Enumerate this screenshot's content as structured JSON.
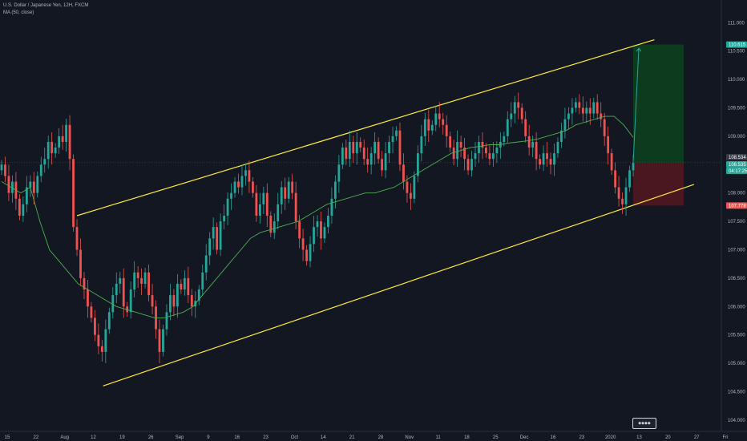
{
  "legend": {
    "title": "U.S. Dollar / Japanese Yen, 12H, FXCM",
    "ma": "MA (50, close)"
  },
  "colors": {
    "background": "#131722",
    "up": "#26a69a",
    "down": "#ef5350",
    "ma": "#4caf50",
    "channel": "#ffeb3b",
    "target_zone": "#0d3b1e",
    "stop_zone": "#4a1620",
    "axis_text": "#b2b5be"
  },
  "chart_data": {
    "type": "candlestick",
    "title": "U.S. Dollar / Japanese Yen, 12H, FXCM",
    "ylim": [
      103.8,
      111.4
    ],
    "y_ticks": [
      "104.000",
      "104.500",
      "105.000",
      "105.500",
      "106.000",
      "106.500",
      "107.000",
      "107.500",
      "108.000",
      "108.500",
      "109.000",
      "109.500",
      "110.000",
      "110.500",
      "111.000"
    ],
    "x_ticks": [
      "15",
      "22",
      "Aug",
      "12",
      "19",
      "26",
      "Sep",
      "9",
      "16",
      "23",
      "Oct",
      "14",
      "21",
      "28",
      "Nov",
      "11",
      "18",
      "25",
      "Dec",
      "16",
      "23",
      "2020",
      "13",
      "20",
      "27",
      "Fri"
    ],
    "price_tags": [
      {
        "label": "110.615",
        "value": 110.615,
        "color": "#26a69a"
      },
      {
        "label": "108.534",
        "value": 108.534,
        "color": "#363a45"
      },
      {
        "label": "108.535",
        "value": 108.535,
        "color": "#26a69a"
      },
      {
        "label": "04:17:25",
        "value": 108.43,
        "color": "#26a69a"
      },
      {
        "label": "107.778",
        "value": 107.778,
        "color": "#ef5350"
      }
    ],
    "close_series": [
      108.5,
      108.3,
      108.0,
      108.2,
      107.9,
      107.6,
      107.8,
      108.1,
      108.2,
      108.0,
      108.3,
      108.5,
      108.6,
      108.9,
      108.7,
      108.8,
      109.0,
      108.9,
      109.2,
      108.6,
      107.4,
      107.0,
      106.5,
      106.3,
      106.0,
      105.8,
      105.5,
      105.3,
      105.2,
      105.6,
      105.9,
      106.2,
      106.4,
      106.5,
      106.0,
      105.9,
      106.3,
      106.6,
      106.5,
      106.4,
      106.6,
      106.2,
      106.0,
      105.6,
      105.2,
      105.6,
      105.9,
      106.2,
      106.0,
      106.4,
      106.3,
      106.5,
      106.2,
      106.0,
      106.1,
      106.3,
      106.6,
      106.9,
      107.2,
      107.4,
      107.0,
      107.5,
      107.6,
      107.9,
      108.0,
      108.2,
      108.1,
      108.3,
      108.4,
      108.2,
      108.0,
      107.6,
      107.8,
      108.0,
      107.6,
      107.3,
      107.5,
      107.8,
      108.1,
      107.9,
      108.2,
      108.0,
      107.5,
      107.2,
      107.0,
      106.8,
      107.1,
      107.4,
      107.5,
      107.2,
      107.4,
      107.6,
      107.9,
      108.2,
      108.5,
      108.8,
      108.6,
      108.9,
      108.7,
      108.9,
      108.8,
      108.6,
      108.5,
      108.7,
      108.9,
      108.6,
      108.4,
      108.7,
      108.9,
      109.0,
      109.1,
      108.5,
      108.2,
      108.0,
      107.9,
      108.3,
      108.7,
      109.0,
      109.3,
      109.1,
      109.2,
      109.4,
      109.3,
      109.2,
      109.0,
      108.8,
      108.6,
      108.9,
      108.8,
      108.6,
      108.4,
      108.6,
      108.7,
      108.9,
      108.8,
      108.7,
      108.6,
      108.7,
      108.8,
      108.9,
      109.0,
      109.3,
      109.4,
      109.6,
      109.5,
      109.3,
      109.0,
      108.8,
      108.9,
      108.6,
      108.5,
      108.7,
      108.6,
      108.5,
      108.7,
      108.9,
      109.1,
      109.3,
      109.4,
      109.5,
      109.6,
      109.5,
      109.4,
      109.5,
      109.4,
      109.6,
      109.4,
      109.3,
      109.0,
      108.7,
      108.4,
      108.1,
      107.9,
      107.8,
      108.1,
      108.4,
      108.53
    ],
    "ma_series": [
      108.2,
      108.1,
      108.0,
      108.1,
      107.5,
      107.0,
      106.8,
      106.6,
      106.4,
      106.3,
      106.2,
      106.1,
      106.0,
      105.95,
      105.9,
      105.85,
      105.8,
      105.8,
      105.85,
      105.9,
      106.0,
      106.2,
      106.4,
      106.6,
      106.8,
      107.0,
      107.2,
      107.3,
      107.35,
      107.4,
      107.45,
      107.5,
      107.6,
      107.7,
      107.8,
      107.85,
      107.9,
      107.95,
      108.0,
      108.0,
      108.05,
      108.1,
      108.2,
      108.3,
      108.4,
      108.5,
      108.6,
      108.7,
      108.75,
      108.8,
      108.82,
      108.85,
      108.85,
      108.88,
      108.9,
      108.92,
      108.95,
      109.0,
      109.05,
      109.1,
      109.2,
      109.25,
      109.3,
      109.35,
      109.35,
      109.2,
      108.98
    ],
    "channel_upper": {
      "start": {
        "x_frac": 0.103,
        "price": 107.6
      },
      "end": {
        "x_frac": 0.876,
        "price": 110.7
      }
    },
    "channel_lower": {
      "start": {
        "x_frac": 0.138,
        "price": 104.6
      },
      "end": {
        "x_frac": 0.929,
        "price": 108.15
      }
    },
    "target_zone": {
      "from": 108.534,
      "to": 110.615
    },
    "stop_zone": {
      "from": 108.534,
      "to": 107.778
    },
    "projection_arrow_to": 110.55
  }
}
